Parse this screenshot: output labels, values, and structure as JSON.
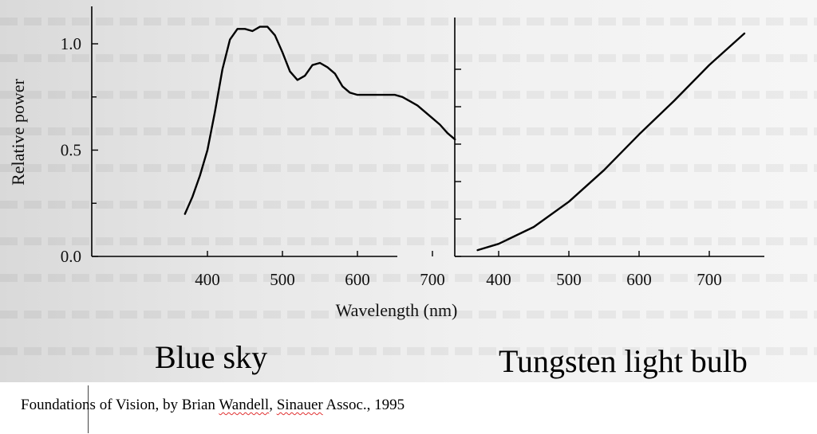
{
  "chart_data": [
    {
      "type": "line",
      "title": "Blue sky",
      "xlabel": "Wavelength (nm)",
      "ylabel": "Relative power",
      "xlim": [
        340,
        790
      ],
      "ylim": [
        0,
        1.18
      ],
      "x_ticks": [
        400,
        500,
        600,
        700
      ],
      "y_ticks": [
        0.0,
        0.5,
        1.0
      ],
      "x_tick_labels": [
        "400",
        "500",
        "600",
        "700"
      ],
      "y_tick_labels": [
        "0.0",
        "0.5",
        "1.0"
      ],
      "series": [
        {
          "x": [
            370,
            380,
            390,
            400,
            410,
            420,
            430,
            440,
            450,
            460,
            470,
            480,
            490,
            500,
            510,
            520,
            530,
            540,
            550,
            560,
            570,
            580,
            590,
            600,
            610,
            620,
            630,
            640,
            650,
            660,
            670,
            680,
            690,
            700,
            710,
            720,
            730
          ],
          "y": [
            0.2,
            0.28,
            0.38,
            0.5,
            0.68,
            0.88,
            1.02,
            1.07,
            1.07,
            1.06,
            1.08,
            1.08,
            1.04,
            0.96,
            0.87,
            0.83,
            0.85,
            0.9,
            0.91,
            0.89,
            0.86,
            0.8,
            0.77,
            0.76,
            0.76,
            0.76,
            0.76,
            0.76,
            0.76,
            0.75,
            0.73,
            0.71,
            0.68,
            0.65,
            0.62,
            0.58,
            0.55
          ]
        }
      ],
      "grid": false
    },
    {
      "type": "line",
      "title": "Tungsten light bulb",
      "xlabel": "",
      "ylabel": "",
      "xlim": [
        340,
        790
      ],
      "x_ticks": [
        400,
        500,
        600,
        700
      ],
      "x_tick_labels": [
        "400",
        "500",
        "600",
        "700"
      ],
      "y_ticks": [],
      "series": [
        {
          "x": [
            370,
            400,
            450,
            500,
            550,
            600,
            650,
            700,
            750
          ],
          "y": [
            0.03,
            0.06,
            0.14,
            0.26,
            0.41,
            0.58,
            0.74,
            0.91,
            1.06
          ]
        }
      ],
      "grid": false
    }
  ],
  "caption": {
    "prefix": "Foundations of Vision, by Brian ",
    "name1": "Wandell",
    "sep": ", ",
    "name2": "Sinauer",
    "suffix": " Assoc., 1995"
  }
}
